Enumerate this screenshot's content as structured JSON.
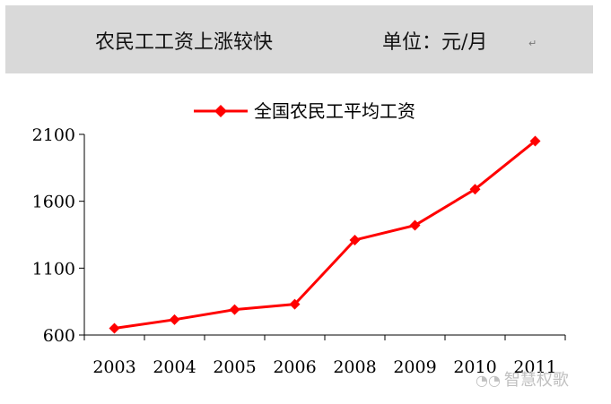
{
  "header": {
    "title": "农民工工资上涨较快",
    "unit": "单位：元/月",
    "return_mark": "↵"
  },
  "watermark": {
    "text": "智慧权歌",
    "icon": "wechat-icon"
  },
  "colors": {
    "series": "#ff0000",
    "header_bg": "#d9d9d9",
    "axis": "#000000"
  },
  "chart_data": {
    "type": "line",
    "categories": [
      "2003",
      "2004",
      "2005",
      "2006",
      "2008",
      "2009",
      "2010",
      "2011"
    ],
    "series": [
      {
        "name": "全国农民工平均工资",
        "values": [
          650,
          715,
          790,
          830,
          1310,
          1420,
          1690,
          2050
        ]
      }
    ],
    "ylim": [
      600,
      2100
    ],
    "yticks": [
      600,
      1100,
      1600,
      2100
    ],
    "legend_position": "top-center",
    "grid": false,
    "marker": "diamond"
  }
}
